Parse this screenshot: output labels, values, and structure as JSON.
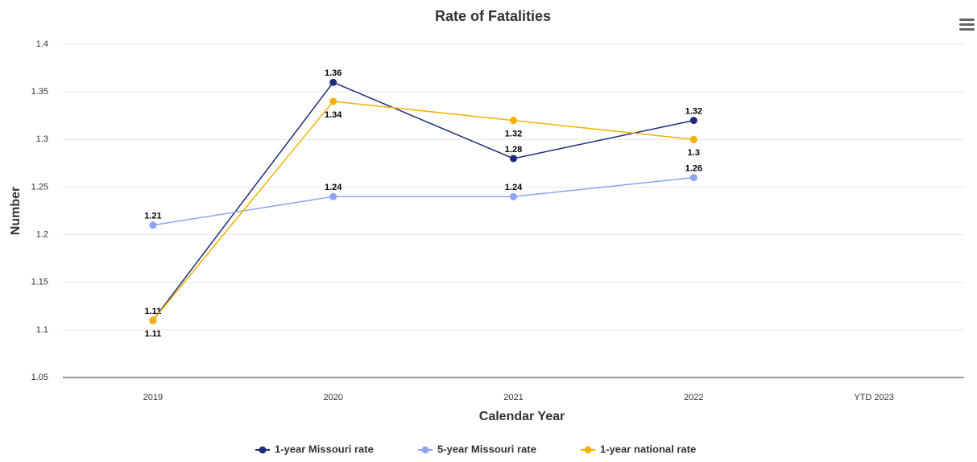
{
  "chart_data": {
    "type": "line",
    "title": "Rate of Fatalities",
    "x_label": "Calendar Year",
    "y_label": "Number",
    "categories": [
      "2019",
      "2020",
      "2021",
      "2022",
      "YTD 2023"
    ],
    "series": [
      {
        "name": "1-year Missouri rate",
        "color": "#1f2a7a",
        "values": [
          1.11,
          1.36,
          1.28,
          1.32,
          null
        ]
      },
      {
        "name": "5-year Missouri rate",
        "color": "#8fa3f2",
        "values": [
          1.21,
          1.24,
          1.24,
          1.26,
          null
        ]
      },
      {
        "name": "1-year national rate",
        "color": "#f5b000",
        "values": [
          1.11,
          1.34,
          1.32,
          1.3,
          null
        ]
      }
    ],
    "ylim": [
      1.05,
      1.4
    ],
    "yticks": [
      1.05,
      1.1,
      1.15,
      1.2,
      1.25,
      1.3,
      1.35,
      1.4
    ],
    "grid": true,
    "legend": "bottom"
  }
}
